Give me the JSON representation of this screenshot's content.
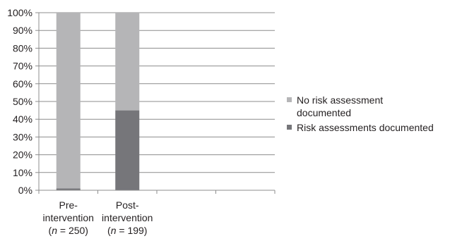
{
  "chart_data": {
    "type": "bar",
    "stacked": true,
    "percent": true,
    "categories": [
      {
        "line1": "Pre-",
        "line2": "intervention",
        "n_var": "n",
        "n_rest": " = 250)"
      },
      {
        "line1": "Post-",
        "line2": "intervention",
        "n_var": "n",
        "n_rest": " = 199)"
      },
      {
        "line1": "",
        "line2": "",
        "n_var": "",
        "n_rest": ""
      },
      {
        "line1": "",
        "line2": "",
        "n_var": "",
        "n_rest": ""
      }
    ],
    "series": [
      {
        "name": "Risk assessments documented",
        "color": "#76767a",
        "values": [
          1,
          45,
          null,
          null
        ]
      },
      {
        "name": "No risk assessment documented",
        "color": "#b5b5b7",
        "values": [
          99,
          55,
          null,
          null
        ]
      }
    ],
    "legend": [
      {
        "lines": [
          "No risk assessment",
          "documented"
        ],
        "color": "#b5b5b7"
      },
      {
        "lines": [
          "Risk assessments documented"
        ],
        "color": "#76767a"
      }
    ],
    "ylim": [
      0,
      100
    ],
    "yticks": [
      "0%",
      "10%",
      "20%",
      "30%",
      "40%",
      "50%",
      "60%",
      "70%",
      "80%",
      "90%",
      "100%"
    ],
    "grid": true,
    "legend_position": "right",
    "xlabel": "",
    "ylabel": ""
  }
}
